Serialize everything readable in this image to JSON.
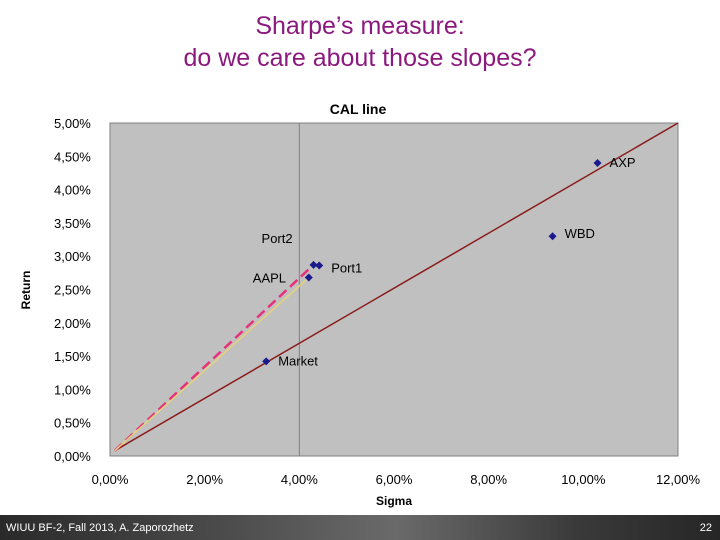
{
  "slide": {
    "title_line1": "Sharpe’s measure:",
    "title_line2": "do we care about those slopes?",
    "footer": "WIUU BF-2, Fall 2013, A. Zaporozhetz",
    "page_number": "22"
  },
  "colors": {
    "title": "#8b1a7e",
    "plot_background": "#c0c0c0",
    "marker": "#1a1a8c",
    "cal_line": "#8b1a1a",
    "port2_line": "#e8307a",
    "aapl_line": "#e6d27a"
  },
  "chart_data": {
    "type": "scatter",
    "title": "CAL line",
    "xlabel": "Sigma",
    "ylabel": "Return",
    "xlim": [
      0.0,
      12.0
    ],
    "ylim": [
      0.0,
      5.0
    ],
    "x_ticks": [
      "0,00%",
      "2,00%",
      "4,00%",
      "6,00%",
      "8,00%",
      "10,00%",
      "12,00%"
    ],
    "y_ticks": [
      "0,00%",
      "0,50%",
      "1,00%",
      "1,50%",
      "2,00%",
      "2,50%",
      "3,00%",
      "3,50%",
      "4,00%",
      "4,50%",
      "5,00%"
    ],
    "grid": "vertical line at x = 4,00%",
    "points": [
      {
        "label": "AXP",
        "x": 10.3,
        "y": 4.4
      },
      {
        "label": "WBD",
        "x": 9.35,
        "y": 3.3
      },
      {
        "label": "Port2",
        "x": 4.3,
        "y": 2.87
      },
      {
        "label": "Port1",
        "x": 4.42,
        "y": 2.86
      },
      {
        "label": "AAPL",
        "x": 4.2,
        "y": 2.68
      },
      {
        "label": "Market",
        "x": 3.3,
        "y": 1.42
      }
    ],
    "lines": [
      {
        "kind": "CAL",
        "style": "solid",
        "from": [
          0.1,
          0.08
        ],
        "to": [
          12.0,
          5.0
        ]
      },
      {
        "kind": "Port2",
        "style": "dashed",
        "from": [
          0.1,
          0.08
        ],
        "to": [
          4.3,
          2.87
        ]
      },
      {
        "kind": "AAPL",
        "style": "solid",
        "from": [
          0.1,
          0.08
        ],
        "to": [
          4.2,
          2.68
        ]
      }
    ]
  }
}
